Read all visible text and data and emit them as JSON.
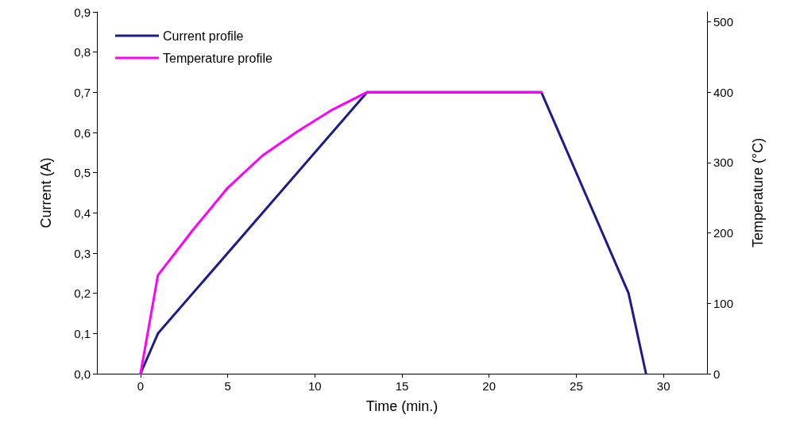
{
  "chart_data": {
    "type": "line",
    "xlabel": "Time (min.)",
    "ylabel": "Current (A)",
    "y2label": "Temperature (°C)",
    "xlim": [
      -2.5,
      32.5
    ],
    "xticks": [
      0,
      5,
      10,
      15,
      20,
      25,
      30
    ],
    "ylim": [
      0,
      0.9
    ],
    "yticks": [
      {
        "value": 0,
        "label": "0,0"
      },
      {
        "value": 0.1,
        "label": "0,1"
      },
      {
        "value": 0.2,
        "label": "0,2"
      },
      {
        "value": 0.3,
        "label": "0,3"
      },
      {
        "value": 0.4,
        "label": "0,4"
      },
      {
        "value": 0.5,
        "label": "0,5"
      },
      {
        "value": 0.6,
        "label": "0,6"
      },
      {
        "value": 0.7,
        "label": "0,7"
      },
      {
        "value": 0.8,
        "label": "0,8"
      },
      {
        "value": 0.9,
        "label": "0,9"
      }
    ],
    "y2lim": [
      0,
      514
    ],
    "y2ticks": [
      0,
      100,
      200,
      300,
      400,
      500
    ],
    "series": [
      {
        "name": "Current profile",
        "color": "#1c1c8c",
        "x": [
          0,
          1,
          13,
          23,
          28,
          29
        ],
        "values": [
          0,
          0.1,
          0.7,
          0.7,
          0.2,
          0
        ]
      },
      {
        "name": "Temperature profile",
        "color": "#ff00ff",
        "axis": "y2",
        "x": [
          0,
          1,
          3,
          5,
          7,
          9,
          11,
          13,
          23
        ],
        "values": [
          0,
          140,
          204,
          264,
          310,
          344,
          375,
          400,
          400
        ]
      }
    ],
    "legend": "top left",
    "grid": false,
    "marker": "none",
    "line_style": "solid"
  }
}
